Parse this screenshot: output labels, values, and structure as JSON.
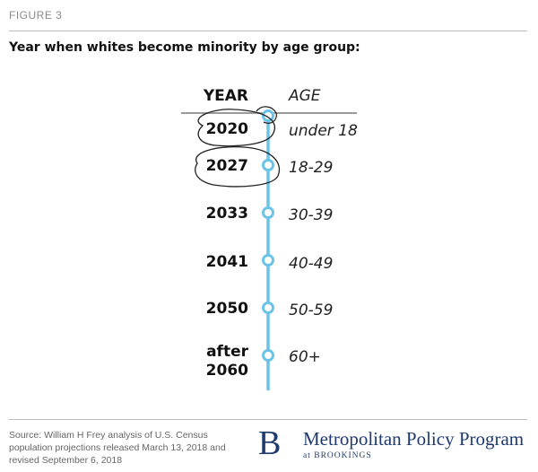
{
  "figure_label": "FIGURE 3",
  "title": "Year when whites become minority by age group:",
  "headers": {
    "year": "YEAR",
    "age": "AGE"
  },
  "rows": [
    {
      "year": "2020",
      "age": "under 18"
    },
    {
      "year": "2027",
      "age": "18-29"
    },
    {
      "year": "2033",
      "age": "30-39"
    },
    {
      "year": "2041",
      "age": "40-49"
    },
    {
      "year": "2050",
      "age": "50-59"
    },
    {
      "year": "after\n2060",
      "age": "60+"
    }
  ],
  "source": "Source: William H Frey analysis of U.S. Census population projections released March 13, 2018 and revised September 6, 2018",
  "logo": {
    "mark": "B",
    "name": "Metropolitan Policy Program",
    "sub": "at BROOKINGS"
  },
  "colors": {
    "timeline": "#6cc3e8",
    "brand": "#1f3a6d"
  }
}
